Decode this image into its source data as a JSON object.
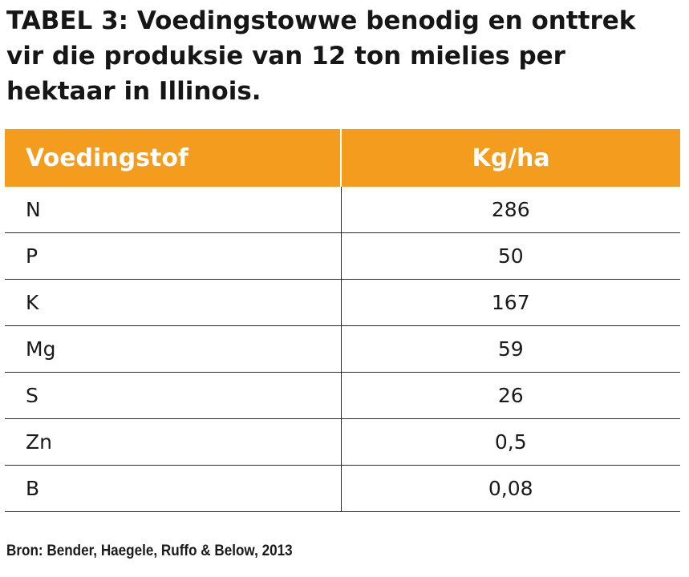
{
  "title": "TABEL 3: Voedingstowwe benodig en onttrek vir die produksie van 12 ton mielies per hektaar in Illinois.",
  "table": {
    "headers": {
      "nutrient": "Voedingstof",
      "value": "Kg/ha"
    },
    "rows": [
      {
        "nutrient": "N",
        "value": "286"
      },
      {
        "nutrient": "P",
        "value": "50"
      },
      {
        "nutrient": "K",
        "value": "167"
      },
      {
        "nutrient": "Mg",
        "value": "59"
      },
      {
        "nutrient": "S",
        "value": "26"
      },
      {
        "nutrient": "Zn",
        "value": "0,5"
      },
      {
        "nutrient": "B",
        "value": "0,08"
      }
    ]
  },
  "source": "Bron: Bender, Haegele, Ruffo & Below, 2013",
  "colors": {
    "header_background": "#f39c1d",
    "header_text": "#ffffff",
    "rule": "#2a2a2a"
  }
}
